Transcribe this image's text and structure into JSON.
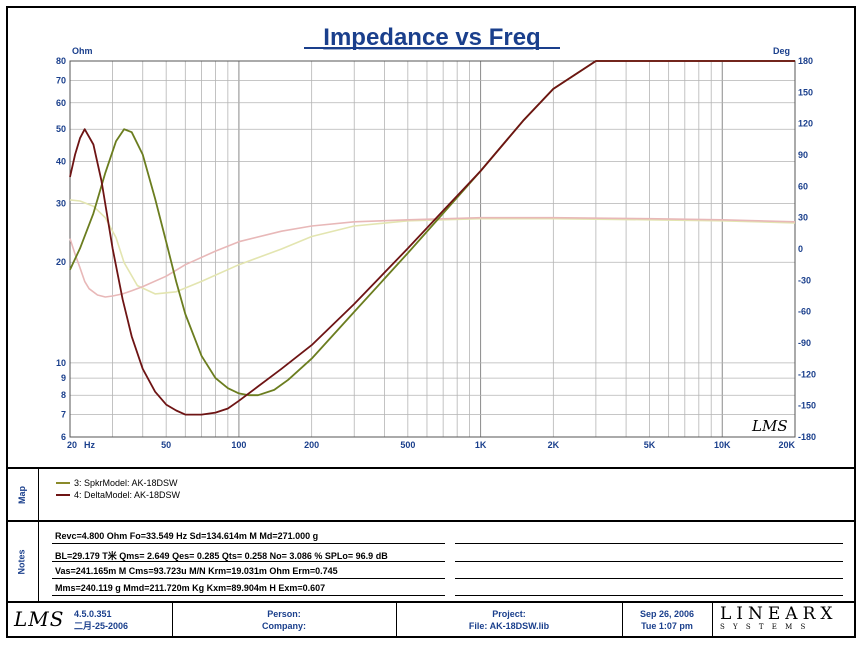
{
  "chart_data": {
    "type": "line",
    "title": "Impedance vs Freq",
    "xscale": "log",
    "xlim": [
      20,
      20000
    ],
    "ylim": [
      6,
      80
    ],
    "yscale": "log",
    "y2lim": [
      -180,
      180
    ],
    "ylabel": "Ohm",
    "y2label": "Deg",
    "xunit": "Hz",
    "x_ticks": [
      {
        "v": 20,
        "label": "20"
      },
      {
        "v": 50,
        "label": "50"
      },
      {
        "v": 100,
        "label": "100"
      },
      {
        "v": 200,
        "label": "200"
      },
      {
        "v": 500,
        "label": "500"
      },
      {
        "v": 1000,
        "label": "1K"
      },
      {
        "v": 2000,
        "label": "2K"
      },
      {
        "v": 5000,
        "label": "5K"
      },
      {
        "v": 10000,
        "label": "10K"
      },
      {
        "v": 20000,
        "label": "20K"
      }
    ],
    "y_ticks": [
      6,
      7,
      8,
      9,
      10,
      20,
      30,
      40,
      50,
      60,
      70,
      80
    ],
    "y2_ticks": [
      180,
      150,
      120,
      90,
      60,
      30,
      0,
      -30,
      -60,
      -90,
      -120,
      -150,
      -180
    ],
    "grid": true,
    "series": [
      {
        "name": "3: SpkrModel: AK-18DSW",
        "axis": "left",
        "color": "#6b7d1f",
        "x": [
          20,
          22,
          25,
          28,
          31,
          33.5,
          36,
          40,
          45,
          50,
          55,
          60,
          70,
          80,
          90,
          100,
          110,
          120,
          140,
          160,
          200,
          300,
          500,
          700,
          1000,
          1500,
          2000,
          3000,
          5000,
          7000,
          10000,
          20000
        ],
        "y": [
          19,
          22,
          28,
          37,
          46,
          50,
          49,
          42,
          31,
          23,
          17.5,
          14,
          10.5,
          9,
          8.4,
          8.1,
          8.0,
          8.0,
          8.3,
          8.9,
          10.3,
          14.2,
          21.3,
          28.0,
          37.5,
          53,
          66,
          80,
          80,
          80,
          80,
          80
        ]
      },
      {
        "name": "3: SpkrModel: AK-18DSW (phase)",
        "axis": "right",
        "color": "#e3e5b0",
        "x": [
          20,
          22,
          25,
          28,
          31,
          33.5,
          38,
          45,
          55,
          70,
          100,
          150,
          200,
          300,
          500,
          1000,
          2000,
          5000,
          10000,
          20000
        ],
        "y": [
          47,
          46,
          41,
          30,
          11,
          -13,
          -35,
          -43,
          -41,
          -31,
          -15,
          0,
          12,
          22,
          27,
          29,
          29,
          28,
          27,
          25
        ]
      },
      {
        "name": "4: DeltaModel: AK-18DSW",
        "axis": "left",
        "color": "#6e1414",
        "x": [
          20,
          21,
          22,
          23,
          25,
          27,
          30,
          33,
          36,
          40,
          45,
          50,
          55,
          60,
          70,
          80,
          90,
          100,
          120,
          150,
          200,
          300,
          500,
          700,
          1000,
          1500,
          2000,
          3000,
          5000,
          7000,
          10000,
          20000
        ],
        "y": [
          36,
          42,
          47,
          50,
          45,
          35,
          22,
          15.5,
          12,
          9.6,
          8.2,
          7.5,
          7.2,
          7.0,
          7.0,
          7.1,
          7.3,
          7.7,
          8.5,
          9.6,
          11.3,
          15,
          22,
          28.5,
          37.5,
          53,
          66,
          80,
          80,
          80,
          80,
          80
        ]
      },
      {
        "name": "4: DeltaModel: AK-18DSW (phase)",
        "axis": "right",
        "color": "#e8b8b8",
        "x": [
          20,
          21,
          22,
          23,
          24,
          26,
          28,
          30,
          33,
          36,
          40,
          50,
          60,
          80,
          100,
          150,
          200,
          300,
          500,
          1000,
          2000,
          5000,
          10000,
          20000
        ],
        "y": [
          10,
          -5,
          -18,
          -31,
          -38,
          -44,
          -46,
          -45,
          -43,
          -40,
          -36,
          -26,
          -15,
          -2,
          7,
          17,
          22,
          26,
          28,
          30,
          30,
          29,
          28,
          26
        ]
      }
    ]
  },
  "legend": {
    "label": "Map",
    "items": [
      {
        "text": "3: SpkrModel: AK-18DSW",
        "color": "#8a8a2a"
      },
      {
        "text": "4: DeltaModel: AK-18DSW",
        "color": "#6e1414"
      }
    ]
  },
  "notes": {
    "label": "Notes",
    "rows": [
      "Revc=4.800 Ohm  Fo=33.549 Hz  Sd=134.614m M   Md=271.000 g",
      "BL=29.179 T米  Qms= 2.649  Qes= 0.285  Qts= 0.258  No= 3.086 %  SPLo= 96.9 dB",
      "Vas=241.165m M    Cms=93.723u M/N  Krm=19.031m Ohm  Erm=0.745",
      "Mms=240.119 g  Mmd=211.720m Kg  Kxm=89.904m H  Exm=0.607"
    ]
  },
  "footer": {
    "logo_text": "LMS",
    "version": "4.5.0.351",
    "version_date": "二月-25-2006",
    "person_label": "Person:",
    "company_label": "Company:",
    "project_label": "Project:",
    "file_label": "File: AK-18DSW.lib",
    "date": "Sep 26, 2006",
    "time": "Tue  1:07 pm",
    "brand_main": "LINEARX",
    "brand_sub": "S Y S T E M S"
  }
}
